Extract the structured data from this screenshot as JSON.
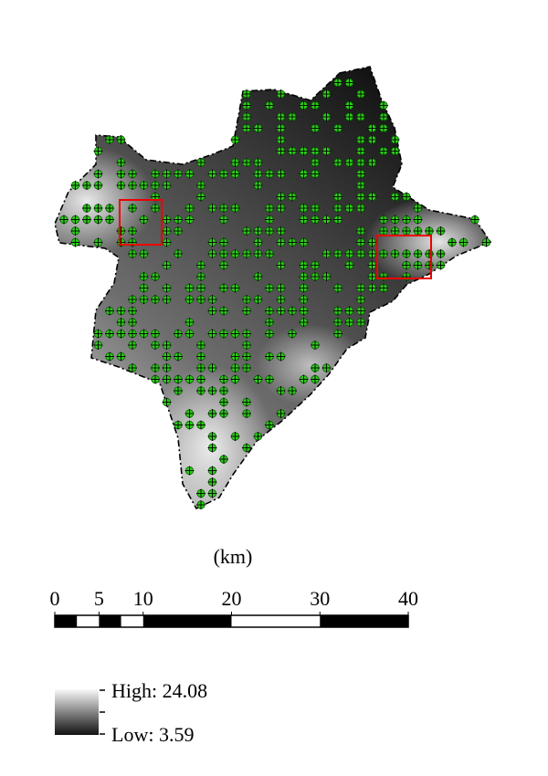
{
  "map": {
    "unit_label": "(km)",
    "scale_bar": {
      "ticks": [
        0,
        5,
        10,
        20,
        30,
        40
      ]
    },
    "legend": {
      "high": "High: 24.08",
      "low": "Low: 3.59"
    }
  }
}
